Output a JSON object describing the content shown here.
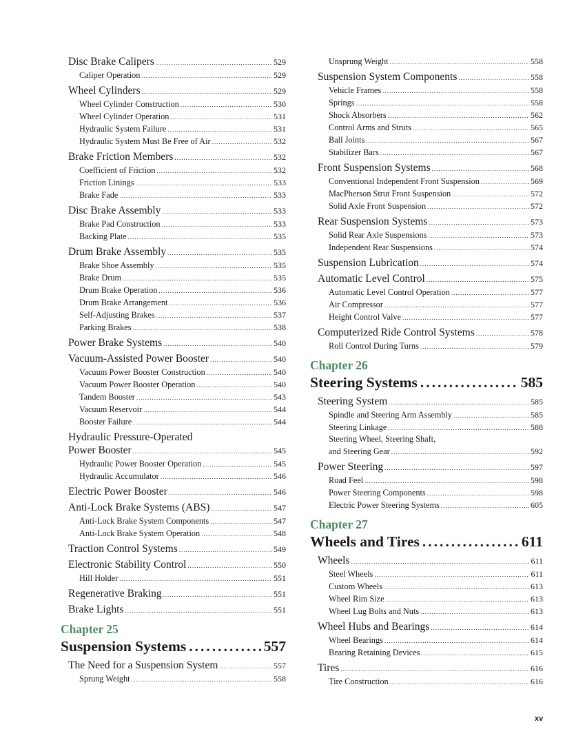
{
  "accent_color": "#4f8a63",
  "page_number": "xv",
  "left_column": [
    {
      "type": "entry",
      "level": 1,
      "title": "Disc Brake Calipers",
      "page": "529"
    },
    {
      "type": "entry",
      "level": 2,
      "title": "Caliper Operation",
      "page": "529"
    },
    {
      "type": "entry",
      "level": 1,
      "title": "Wheel Cylinders",
      "page": "529"
    },
    {
      "type": "entry",
      "level": 2,
      "title": "Wheel Cylinder Construction",
      "page": "530"
    },
    {
      "type": "entry",
      "level": 2,
      "title": "Wheel Cylinder Operation",
      "page": "531"
    },
    {
      "type": "entry",
      "level": 2,
      "title": "Hydraulic System Failure",
      "page": "531"
    },
    {
      "type": "entry",
      "level": 2,
      "title": "Hydraulic System Must Be Free of Air",
      "page": "532"
    },
    {
      "type": "entry",
      "level": 1,
      "title": "Brake Friction Members",
      "page": "532"
    },
    {
      "type": "entry",
      "level": 2,
      "title": "Coefficient of Friction",
      "page": "532"
    },
    {
      "type": "entry",
      "level": 2,
      "title": "Friction Linings",
      "page": "533"
    },
    {
      "type": "entry",
      "level": 2,
      "title": "Brake Fade",
      "page": "533"
    },
    {
      "type": "entry",
      "level": 1,
      "title": "Disc Brake Assembly",
      "page": "533"
    },
    {
      "type": "entry",
      "level": 2,
      "title": "Brake Pad Construction",
      "page": "533"
    },
    {
      "type": "entry",
      "level": 2,
      "title": "Backing Plate",
      "page": "535"
    },
    {
      "type": "entry",
      "level": 1,
      "title": "Drum Brake Assembly",
      "page": "535"
    },
    {
      "type": "entry",
      "level": 2,
      "title": "Brake Shoe Assembly",
      "page": "535"
    },
    {
      "type": "entry",
      "level": 2,
      "title": "Brake Drum",
      "page": "535"
    },
    {
      "type": "entry",
      "level": 2,
      "title": "Drum Brake Operation",
      "page": "536"
    },
    {
      "type": "entry",
      "level": 2,
      "title": "Drum Brake Arrangement",
      "page": "536"
    },
    {
      "type": "entry",
      "level": 2,
      "title": "Self-Adjusting Brakes",
      "page": "537"
    },
    {
      "type": "entry",
      "level": 2,
      "title": "Parking Brakes",
      "page": "538"
    },
    {
      "type": "entry",
      "level": 1,
      "title": "Power Brake Systems",
      "page": "540"
    },
    {
      "type": "entry",
      "level": 1,
      "title": "Vacuum-Assisted Power Booster",
      "page": "540"
    },
    {
      "type": "entry",
      "level": 2,
      "title": "Vacuum Power Booster Construction",
      "page": "540"
    },
    {
      "type": "entry",
      "level": 2,
      "title": "Vacuum Power Booster Operation",
      "page": "540"
    },
    {
      "type": "entry",
      "level": 2,
      "title": "Tandem Booster",
      "page": "543"
    },
    {
      "type": "entry",
      "level": 2,
      "title": "Vacuum Reservoir",
      "page": "544"
    },
    {
      "type": "entry",
      "level": 2,
      "title": "Booster Failure",
      "page": "544"
    },
    {
      "type": "multi",
      "level": 1,
      "title_line1": "Hydraulic Pressure-Operated",
      "title": "Power Booster",
      "page": "545"
    },
    {
      "type": "entry",
      "level": 2,
      "title": "Hydraulic Power Booster Operation",
      "page": "545"
    },
    {
      "type": "entry",
      "level": 2,
      "title": "Hydraulic Accumulator",
      "page": "546"
    },
    {
      "type": "entry",
      "level": 1,
      "title": "Electric Power Booster",
      "page": "546"
    },
    {
      "type": "entry",
      "level": 1,
      "title": "Anti-Lock Brake Systems (ABS)",
      "page": "547"
    },
    {
      "type": "entry",
      "level": 2,
      "title": "Anti-Lock Brake System Components",
      "page": "547"
    },
    {
      "type": "entry",
      "level": 2,
      "title": "Anti-Lock Brake System Operation",
      "page": "548"
    },
    {
      "type": "entry",
      "level": 1,
      "title": "Traction Control Systems",
      "page": "549"
    },
    {
      "type": "entry",
      "level": 1,
      "title": "Electronic Stability Control",
      "page": "550"
    },
    {
      "type": "entry",
      "level": 2,
      "title": "Hill Holder",
      "page": "551"
    },
    {
      "type": "entry",
      "level": 1,
      "title": "Regenerative Braking",
      "page": "551"
    },
    {
      "type": "entry",
      "level": 1,
      "title": "Brake Lights",
      "page": "551"
    },
    {
      "type": "chapter",
      "label": "Chapter 25",
      "title": "Suspension Systems",
      "page": "557"
    },
    {
      "type": "entry",
      "level": 1,
      "title": "The Need for a Suspension System",
      "page": "557"
    },
    {
      "type": "entry",
      "level": 2,
      "title": "Sprung Weight",
      "page": "558"
    }
  ],
  "right_column": [
    {
      "type": "entry",
      "level": 2,
      "title": "Unsprung Weight",
      "page": "558"
    },
    {
      "type": "entry",
      "level": 1,
      "title": "Suspension System Components",
      "page": "558"
    },
    {
      "type": "entry",
      "level": 2,
      "title": "Vehicle Frames",
      "page": "558"
    },
    {
      "type": "entry",
      "level": 2,
      "title": "Springs",
      "page": "558"
    },
    {
      "type": "entry",
      "level": 2,
      "title": "Shock Absorbers",
      "page": "562"
    },
    {
      "type": "entry",
      "level": 2,
      "title": "Control Arms and Struts",
      "page": "565"
    },
    {
      "type": "entry",
      "level": 2,
      "title": "Ball Joints",
      "page": "567"
    },
    {
      "type": "entry",
      "level": 2,
      "title": "Stabilizer Bars",
      "page": "567"
    },
    {
      "type": "entry",
      "level": 1,
      "title": "Front Suspension Systems",
      "page": "568"
    },
    {
      "type": "entry",
      "level": 2,
      "title": "Conventional Independent Front Suspension",
      "page": "569"
    },
    {
      "type": "entry",
      "level": 2,
      "title": "MacPherson Strut Front Suspension",
      "page": "572"
    },
    {
      "type": "entry",
      "level": 2,
      "title": "Solid Axle Front Suspension",
      "page": "572"
    },
    {
      "type": "entry",
      "level": 1,
      "title": "Rear Suspension Systems",
      "page": "573"
    },
    {
      "type": "entry",
      "level": 2,
      "title": "Solid Rear Axle Suspensions",
      "page": "573"
    },
    {
      "type": "entry",
      "level": 2,
      "title": "Independent Rear Suspensions",
      "page": "574"
    },
    {
      "type": "entry",
      "level": 1,
      "title": "Suspension Lubrication",
      "page": "574"
    },
    {
      "type": "entry",
      "level": 1,
      "title": "Automatic Level Control",
      "page": "575"
    },
    {
      "type": "entry",
      "level": 2,
      "title": "Automatic Level Control Operation",
      "page": "577"
    },
    {
      "type": "entry",
      "level": 2,
      "title": "Air Compressor",
      "page": "577"
    },
    {
      "type": "entry",
      "level": 2,
      "title": "Height Control Valve",
      "page": "577"
    },
    {
      "type": "entry",
      "level": 1,
      "title": "Computerized Ride Control Systems",
      "page": "578"
    },
    {
      "type": "entry",
      "level": 2,
      "title": "Roll Control During Turns",
      "page": "579"
    },
    {
      "type": "chapter",
      "label": "Chapter 26",
      "title": "Steering Systems",
      "page": "585"
    },
    {
      "type": "entry",
      "level": 1,
      "title": "Steering System",
      "page": "585"
    },
    {
      "type": "entry",
      "level": 2,
      "title": "Spindle and Steering Arm Assembly",
      "page": "585"
    },
    {
      "type": "entry",
      "level": 2,
      "title": "Steering Linkage",
      "page": "588"
    },
    {
      "type": "multi",
      "level": 2,
      "title_line1": "Steering Wheel, Steering Shaft,",
      "title": "and Steering Gear",
      "page": "592"
    },
    {
      "type": "entry",
      "level": 1,
      "title": "Power Steering",
      "page": "597"
    },
    {
      "type": "entry",
      "level": 2,
      "title": "Road Feel",
      "page": "598"
    },
    {
      "type": "entry",
      "level": 2,
      "title": "Power Steering Components",
      "page": "598"
    },
    {
      "type": "entry",
      "level": 2,
      "title": "Electric Power Steering Systems",
      "page": "605"
    },
    {
      "type": "chapter",
      "label": "Chapter 27",
      "title": "Wheels and Tires",
      "page": "611"
    },
    {
      "type": "entry",
      "level": 1,
      "title": "Wheels",
      "page": "611"
    },
    {
      "type": "entry",
      "level": 2,
      "title": "Steel Wheels",
      "page": "611"
    },
    {
      "type": "entry",
      "level": 2,
      "title": "Custom Wheels",
      "page": "613"
    },
    {
      "type": "entry",
      "level": 2,
      "title": "Wheel Rim Size",
      "page": "613"
    },
    {
      "type": "entry",
      "level": 2,
      "title": "Wheel Lug Bolts and Nuts",
      "page": "613"
    },
    {
      "type": "entry",
      "level": 1,
      "title": "Wheel Hubs and Bearings",
      "page": "614"
    },
    {
      "type": "entry",
      "level": 2,
      "title": "Wheel Bearings",
      "page": "614"
    },
    {
      "type": "entry",
      "level": 2,
      "title": "Bearing Retaining Devices",
      "page": "615"
    },
    {
      "type": "entry",
      "level": 1,
      "title": "Tires",
      "page": "616"
    },
    {
      "type": "entry",
      "level": 2,
      "title": "Tire Construction",
      "page": "616"
    }
  ]
}
